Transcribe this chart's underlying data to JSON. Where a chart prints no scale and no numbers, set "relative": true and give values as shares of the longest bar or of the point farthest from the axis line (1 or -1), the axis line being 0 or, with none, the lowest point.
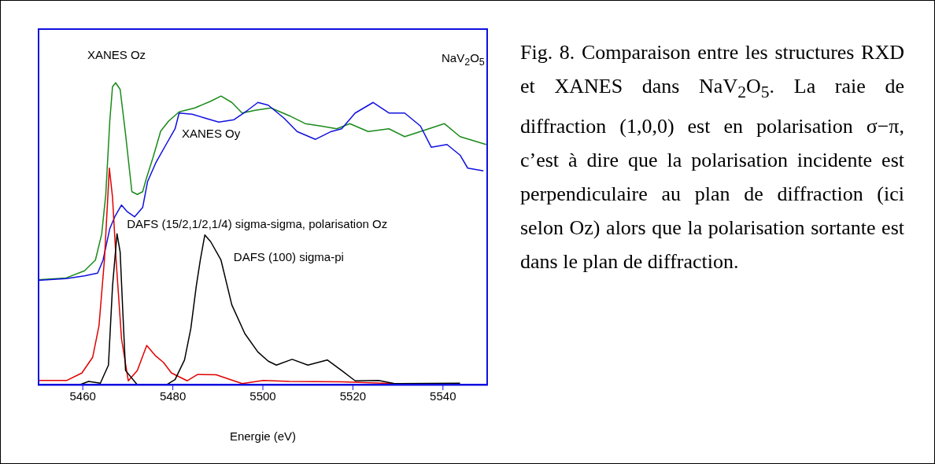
{
  "chart_data": {
    "type": "line",
    "relative": true,
    "xlabel": "Energie (eV)",
    "xlim": [
      5450,
      5550
    ],
    "xticks": [
      5460,
      5480,
      5500,
      5520,
      5540
    ],
    "annotations": [
      "NaV$_{2}$O$_{5}$",
      "Fig. 8. Comparaison entre les structures RXD et XANES dans NaV$_{2}$O$_{5}$. La raie de diffraction (1,0,0) est en polarisation σ−π, c’est à dire que la polarisation incidente est perpendiculaire au plan de diffraction (ici selon Oz) alors que la polarisation sortante est dans le plan de diffraction.",
      "DAFS (15/2,1/2,1/4) sigma-sigma, polarisation Oz"
    ],
    "series": [
      {
        "name": "XANES Oz",
        "color": "#1a8a1a",
        "x": [
          5450,
          5456.3,
          5460.4,
          5462.8,
          5464.2,
          5465.1,
          5466,
          5466.6,
          5467.3,
          5468.3,
          5469.5,
          5470.9,
          5472.1,
          5473.3,
          5474.1,
          5475.6,
          5477.3,
          5479.1,
          5481.4,
          5484.9,
          5488.4,
          5490.7,
          5493.1,
          5495.4,
          5498.3,
          5501.8,
          5505.9,
          5509.4,
          5512.9,
          5516.4,
          5519.3,
          5523.4,
          5528,
          5531.5,
          5535,
          5540.3,
          5543.8,
          5549.6
        ],
        "values": [
          0.349,
          0.355,
          0.379,
          0.414,
          0.5,
          0.63,
          0.874,
          0.987,
          1,
          0.978,
          0.83,
          0.64,
          0.631,
          0.64,
          0.683,
          0.753,
          0.84,
          0.874,
          0.904,
          0.917,
          0.939,
          0.956,
          0.935,
          0.9,
          0.909,
          0.917,
          0.891,
          0.865,
          0.857,
          0.848,
          0.865,
          0.839,
          0.848,
          0.822,
          0.839,
          0.865,
          0.822,
          0.796
        ]
      },
      {
        "name": "XANES Oy",
        "color": "#1010e0",
        "x": [
          5450,
          5456.3,
          5460.4,
          5463.3,
          5464.5,
          5466,
          5467.1,
          5468.6,
          5469.8,
          5471.5,
          5473.3,
          5474.4,
          5476.2,
          5478.5,
          5480.5,
          5481.4,
          5484.3,
          5487.2,
          5490.2,
          5493.6,
          5496.6,
          5498.9,
          5501.2,
          5504.7,
          5507.6,
          5511.7,
          5515.2,
          5517.5,
          5520.5,
          5524.5,
          5528,
          5531.5,
          5535,
          5537.4,
          5540.9,
          5543.8,
          5545.5,
          5549
        ],
        "values": [
          0.347,
          0.353,
          0.362,
          0.371,
          0.414,
          0.518,
          0.557,
          0.596,
          0.575,
          0.557,
          0.588,
          0.674,
          0.735,
          0.796,
          0.848,
          0.9,
          0.896,
          0.883,
          0.87,
          0.878,
          0.909,
          0.935,
          0.926,
          0.883,
          0.839,
          0.813,
          0.839,
          0.848,
          0.9,
          0.935,
          0.9,
          0.9,
          0.857,
          0.787,
          0.796,
          0.761,
          0.718,
          0.709
        ]
      },
      {
        "color": "#e00000",
        "x": [
          5450,
          5456.4,
          5459.8,
          5462.2,
          5463.6,
          5464.8,
          5465.9,
          5466.6,
          5467.4,
          5468.6,
          5470.1,
          5472.1,
          5474.2,
          5476.2,
          5477.9,
          5479.7,
          5483.2,
          5485.5,
          5489.6,
          5495.4,
          5500.1,
          5505.9,
          5517.5,
          5529.2
        ],
        "values": [
          0.016,
          0.016,
          0.041,
          0.093,
          0.197,
          0.414,
          0.718,
          0.622,
          0.414,
          0.154,
          0.015,
          0.049,
          0.132,
          0.097,
          0.076,
          0.041,
          0.015,
          0.036,
          0.035,
          0.006,
          0.016,
          0.013,
          0.012,
          0.006
        ]
      },
      {
        "name": "DAFS (100) sigma-pi",
        "color": "#000000",
        "x": [
          5459.3,
          5461.3,
          5463.9,
          5465.7,
          5466.6,
          5467.6,
          5468.3,
          5468.9,
          5469.5,
          5472.1,
          5475,
          5478.5,
          5480.5,
          5482.6,
          5484,
          5485.2,
          5486.1,
          5487.1,
          5488.4,
          5490.7,
          5493.1,
          5496,
          5498.9,
          5501.2,
          5503,
          5506.5,
          5510,
          5514.3,
          5517.5,
          5520.5,
          5525.7,
          5529.2,
          5543.8
        ],
        "values": [
          0.002,
          0.013,
          0.007,
          0.067,
          0.327,
          0.501,
          0.44,
          0.24,
          0.049,
          0.002,
          null,
          0.001,
          0.019,
          0.084,
          0.188,
          0.327,
          0.414,
          0.497,
          0.475,
          0.414,
          0.266,
          0.171,
          0.11,
          0.08,
          0.067,
          0.086,
          0.067,
          0.084,
          0.049,
          0.015,
          0.016,
          0.006,
          0.007
        ]
      }
    ]
  }
}
